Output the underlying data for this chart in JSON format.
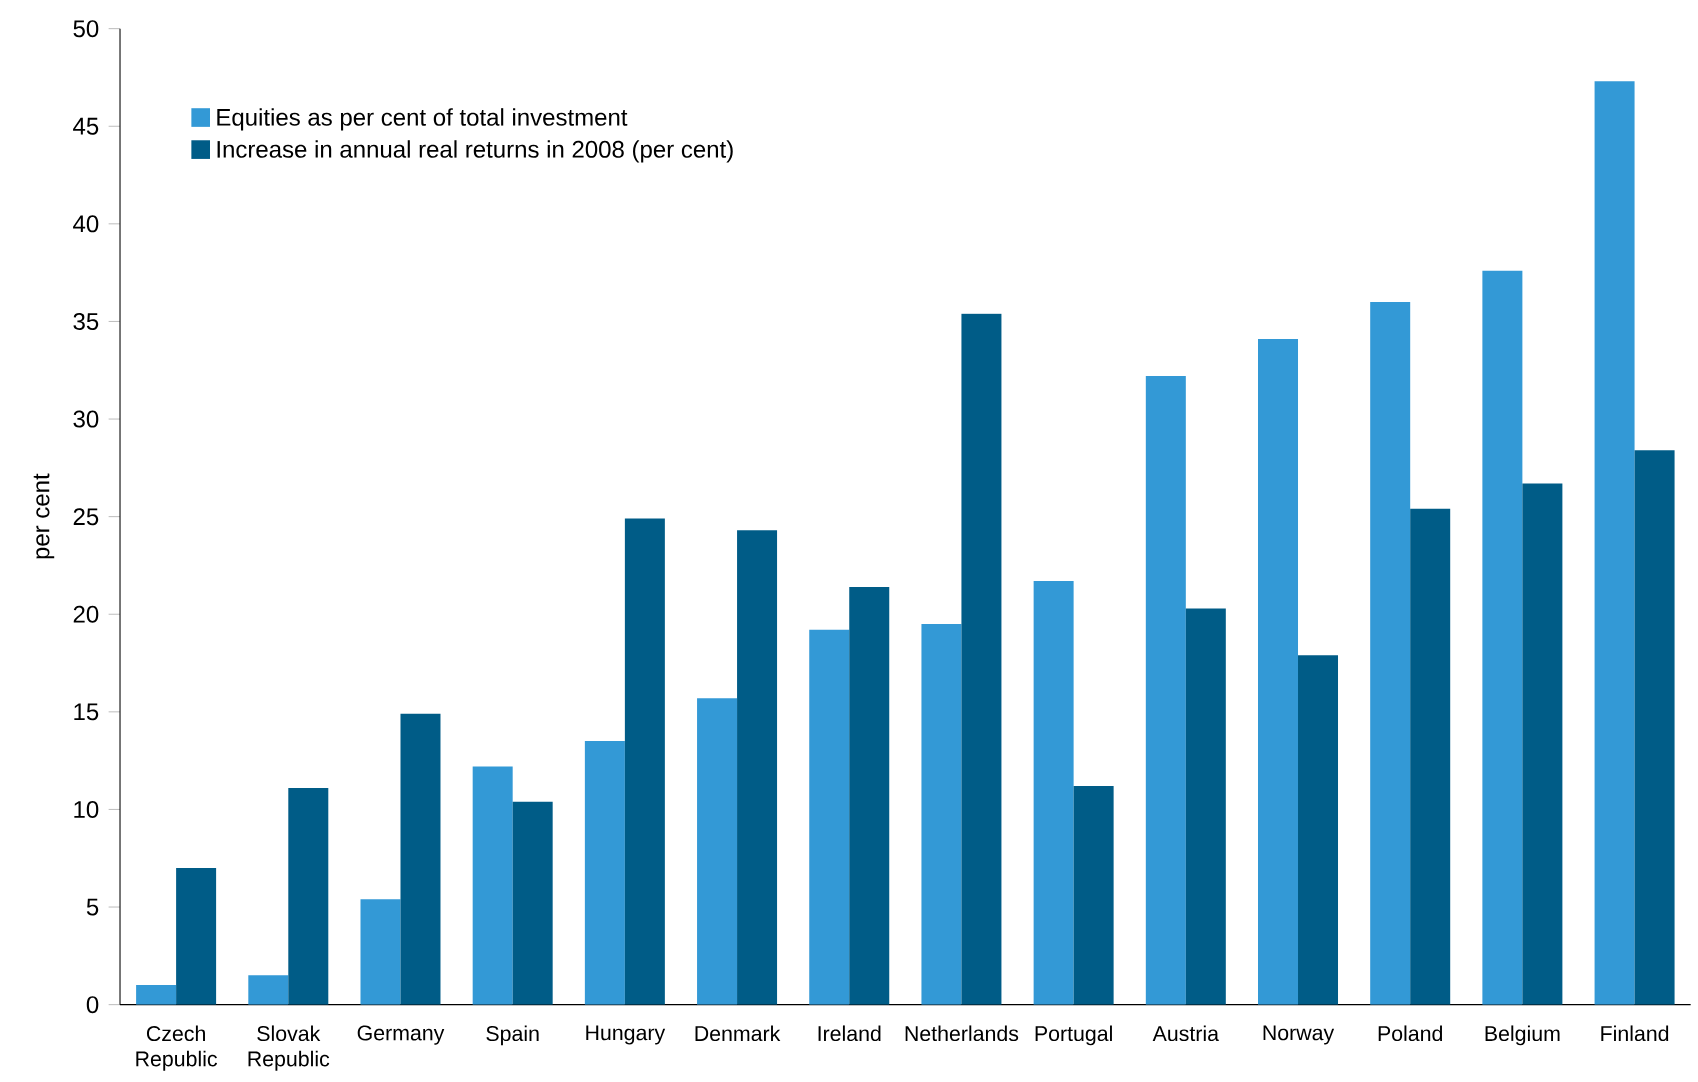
{
  "chart_data": {
    "type": "bar",
    "ylabel": "per cent",
    "categories": [
      "Czech Republic",
      "Slovak Republic",
      "Germany",
      "Spain",
      "Hungary",
      "Denmark",
      "Ireland",
      "Netherlands",
      "Portugal",
      "Austria",
      "Norway",
      "Poland",
      "Belgium",
      "Finland"
    ],
    "series": [
      {
        "name": "Equities as per cent of total investment",
        "color": "#3399d6",
        "values": [
          1.0,
          1.5,
          5.4,
          12.2,
          13.5,
          15.7,
          19.2,
          19.5,
          21.7,
          32.2,
          34.1,
          36.0,
          37.6,
          47.3
        ]
      },
      {
        "name": "Increase in annual real returns in 2008 (per cent)",
        "color": "#005c87",
        "values": [
          7.0,
          11.1,
          14.9,
          10.4,
          24.9,
          24.3,
          21.4,
          35.4,
          11.2,
          20.3,
          17.9,
          25.4,
          26.7,
          28.4
        ]
      }
    ],
    "ylim": [
      0,
      50
    ],
    "yticks": [
      0,
      5,
      10,
      15,
      20,
      25,
      30,
      35,
      40,
      45,
      50
    ],
    "grid": false,
    "legend": "top left"
  }
}
